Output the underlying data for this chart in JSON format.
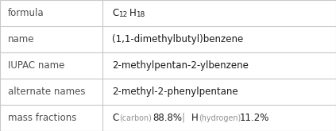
{
  "rows": [
    {
      "label": "formula",
      "value": "formula_special"
    },
    {
      "label": "name",
      "value": "(1,1-dimethylbutyl)benzene"
    },
    {
      "label": "IUPAC name",
      "value": "2-methylpentan-2-ylbenzene"
    },
    {
      "label": "alternate names",
      "value": "2-methyl-2-phenylpentane"
    },
    {
      "label": "mass fractions",
      "value": "mass_fractions_special"
    }
  ],
  "col_split": 0.305,
  "bg_color": "#ffffff",
  "border_color": "#c8c8c8",
  "label_color": "#505050",
  "value_color": "#1a1a1a",
  "font_size": 8.5,
  "formula_main": "C",
  "formula_sub1": "12",
  "formula_h": "H",
  "formula_sub2": "18",
  "mf_c": "C",
  "mf_c_label": "(carbon)",
  "mf_c_pct": "88.8%",
  "mf_sep": "|",
  "mf_h": "H",
  "mf_h_label": "(hydrogen)",
  "mf_h_pct": "11.2%",
  "mf_element_color": "#1a1a1a",
  "mf_label_color": "#909090"
}
